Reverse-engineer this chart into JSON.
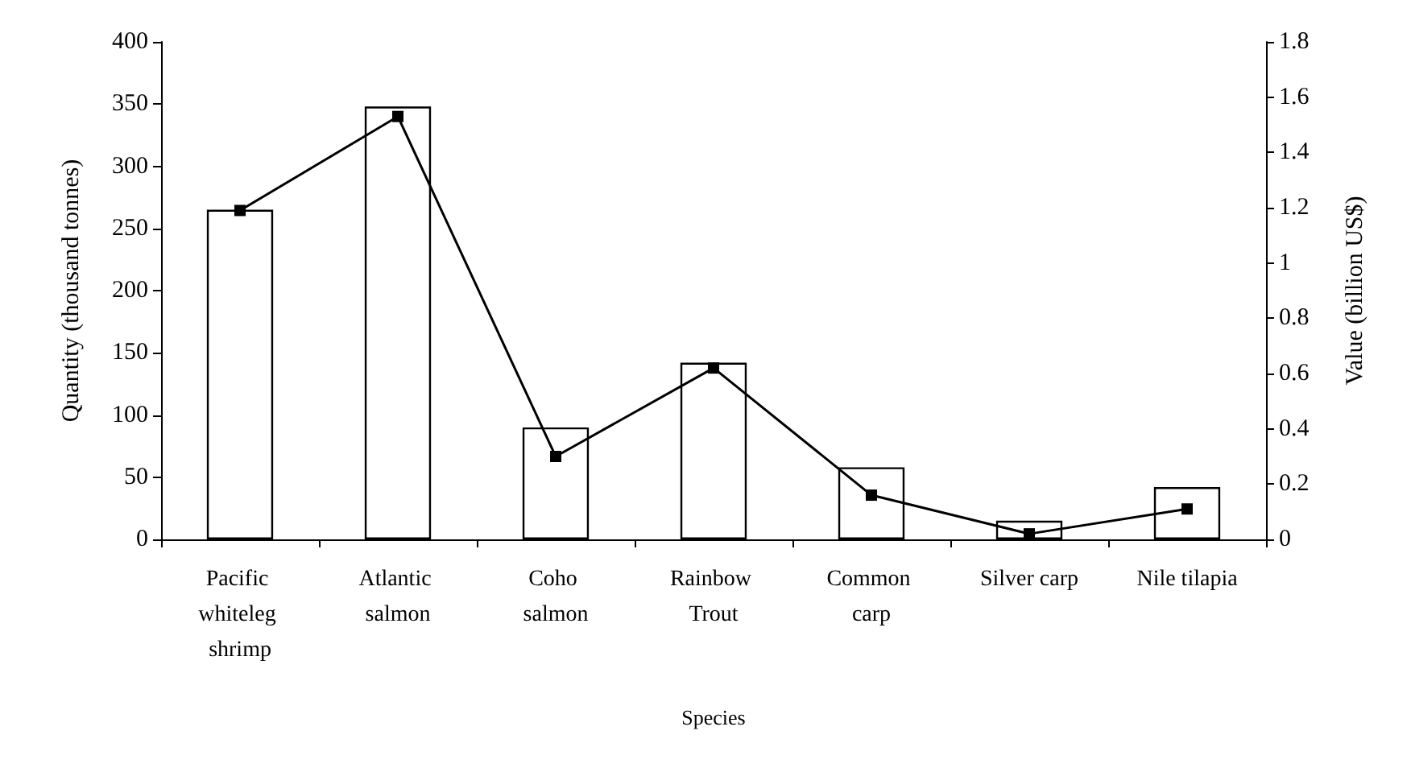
{
  "chart_data": {
    "type": "bar",
    "xlabel": "Species",
    "ylabel": "Quantity (thousand tonnes)",
    "y2label": "Value (billion US$)",
    "categories": [
      "Pacific whiteleg shrimp",
      "Atlantic salmon",
      "Coho salmon",
      "Rainbow Trout",
      "Common carp",
      "Silver carp",
      "Nile tilapia"
    ],
    "series": [
      {
        "color": "#ffffff",
        "values": [
          265,
          348,
          90,
          142,
          58,
          15,
          42
        ]
      },
      {
        "type": "line",
        "axis": "y2",
        "color": "#000000",
        "values": [
          1.19,
          1.53,
          0.3,
          0.62,
          0.16,
          0.02,
          0.11
        ]
      }
    ],
    "ylim": [
      0,
      400
    ],
    "yticks": [
      0,
      50,
      100,
      150,
      200,
      250,
      300,
      350,
      400
    ],
    "y2lim": [
      0,
      1.8
    ],
    "y2ticks": [
      0,
      0.2,
      0.4,
      0.6,
      0.8,
      1,
      1.2,
      1.4,
      1.6,
      1.8
    ],
    "grid": false,
    "marker": "square",
    "line_style": "solid"
  }
}
